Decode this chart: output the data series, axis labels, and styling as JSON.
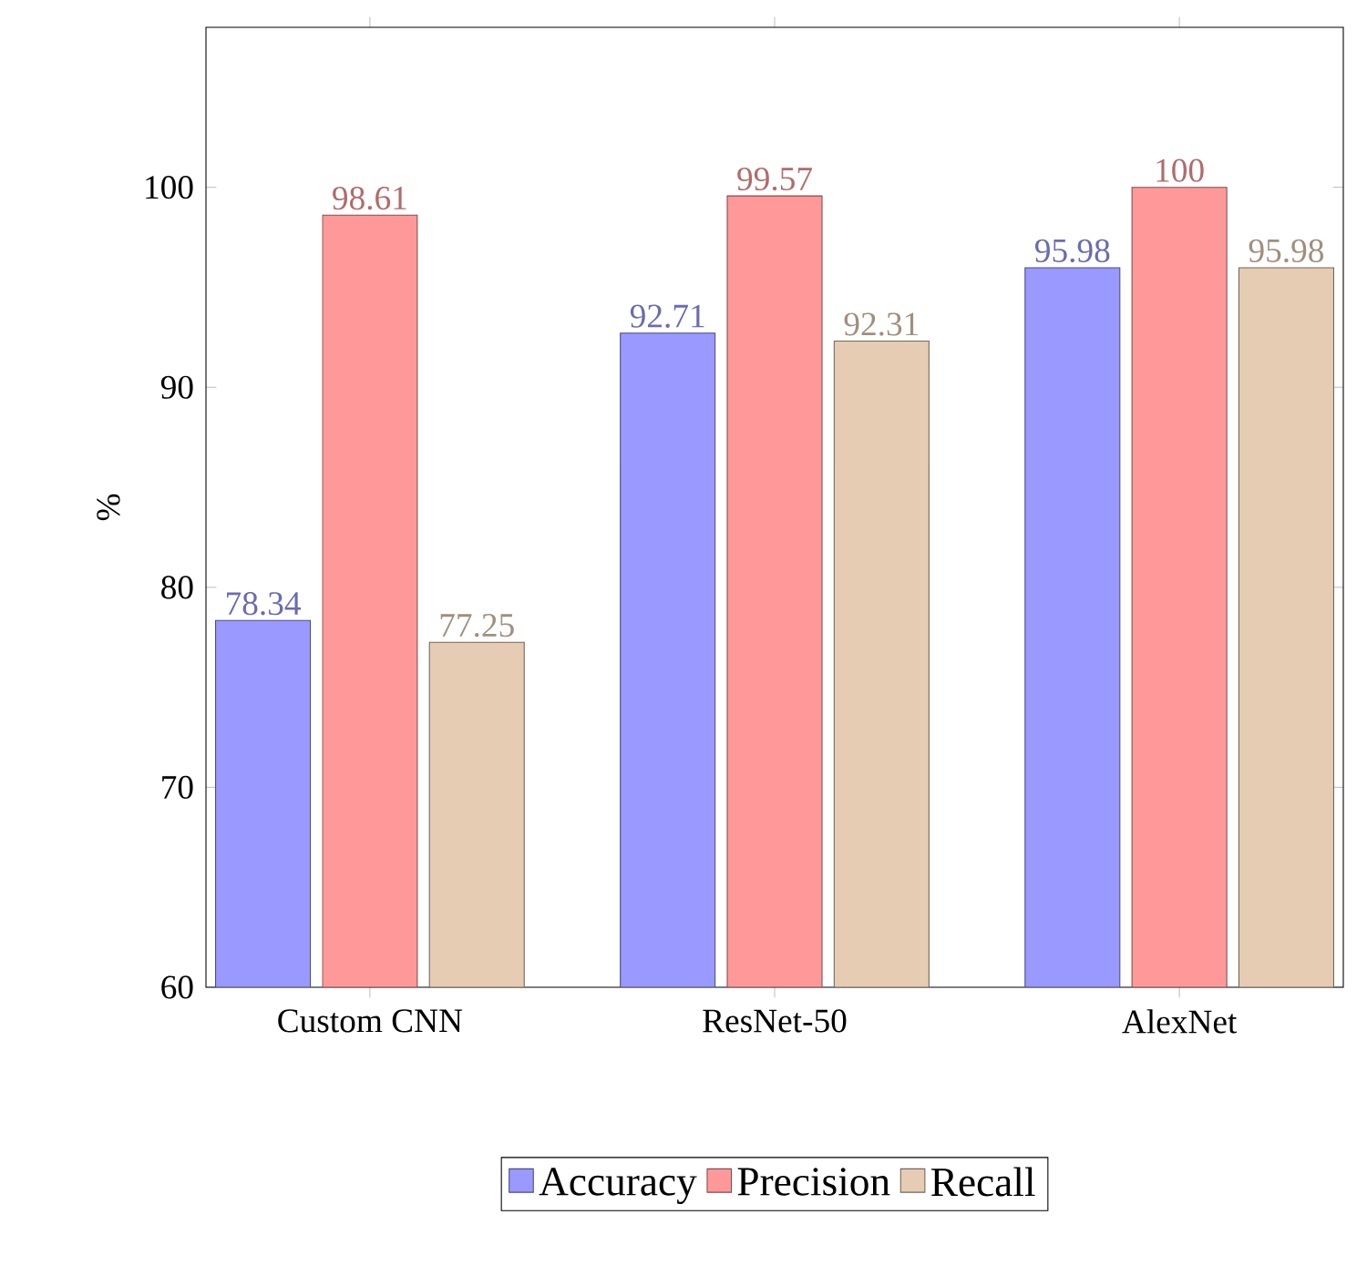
{
  "chart_data": {
    "type": "bar",
    "ylabel": "%",
    "categories": [
      "Custom CNN",
      "ResNet-50",
      "AlexNet"
    ],
    "series": [
      {
        "name": "Accuracy",
        "color": "#9999ff",
        "values": [
          78.34,
          92.71,
          95.98
        ]
      },
      {
        "name": "Precision",
        "color": "#ff9999",
        "values": [
          98.61,
          99.57,
          100
        ]
      },
      {
        "name": "Recall",
        "color": "#e5ccb3",
        "values": [
          77.25,
          92.31,
          95.98
        ]
      }
    ],
    "ylim": [
      60,
      108
    ],
    "yticks": [
      60,
      70,
      80,
      90,
      100
    ],
    "data_labels": true,
    "legend": "bottom",
    "grid": false
  }
}
